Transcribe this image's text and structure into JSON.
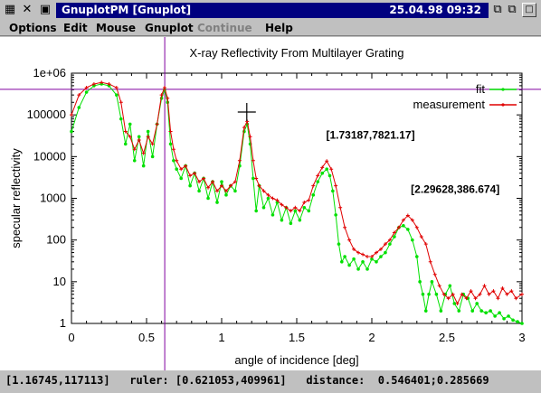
{
  "window": {
    "title": "GnuplotPM [Gnuplot]",
    "clock": "25.04.98 09:32"
  },
  "icons": {
    "system_menu": "gnuplot-app-icon",
    "close": "close-x-icon",
    "tile": "tile-windows-icon",
    "cascade": "cascade-windows-icon",
    "minimize": "minimize-icon",
    "maximize": "maximize-icon"
  },
  "menu": {
    "options": "Options",
    "edit": "Edit",
    "mouse": "Mouse",
    "gnuplot": "Gnuplot",
    "continue": "Continue",
    "help": "Help"
  },
  "chart_data": {
    "type": "line",
    "title": "X-ray Reflectivity From Multilayer Grating",
    "xlabel": "angle of incidence [deg]",
    "ylabel": "specular reflectivity",
    "xlim": [
      0,
      3
    ],
    "ylim": [
      1,
      1000000
    ],
    "yscale": "log",
    "xticks": [
      "0",
      "0.5",
      "1",
      "1.5",
      "2",
      "2.5",
      "3"
    ],
    "yticks": [
      "1",
      "10",
      "100",
      "1000",
      "10000",
      "100000",
      "1e+06"
    ],
    "legend_position": "top-right",
    "series": [
      {
        "name": "fit",
        "color": "#00e000",
        "x": [
          0.0,
          0.05,
          0.1,
          0.15,
          0.2,
          0.25,
          0.3,
          0.33,
          0.36,
          0.39,
          0.42,
          0.45,
          0.48,
          0.51,
          0.54,
          0.57,
          0.6,
          0.62,
          0.64,
          0.66,
          0.68,
          0.7,
          0.73,
          0.76,
          0.79,
          0.82,
          0.85,
          0.88,
          0.91,
          0.94,
          0.97,
          1.0,
          1.03,
          1.06,
          1.09,
          1.12,
          1.15,
          1.17,
          1.19,
          1.21,
          1.23,
          1.25,
          1.28,
          1.31,
          1.34,
          1.37,
          1.4,
          1.43,
          1.46,
          1.49,
          1.52,
          1.55,
          1.58,
          1.61,
          1.64,
          1.67,
          1.7,
          1.72,
          1.74,
          1.76,
          1.78,
          1.8,
          1.82,
          1.85,
          1.88,
          1.91,
          1.94,
          1.97,
          2.0,
          2.03,
          2.06,
          2.09,
          2.12,
          2.15,
          2.18,
          2.21,
          2.24,
          2.27,
          2.3,
          2.32,
          2.34,
          2.36,
          2.38,
          2.4,
          2.43,
          2.46,
          2.49,
          2.52,
          2.55,
          2.58,
          2.61,
          2.64,
          2.67,
          2.7,
          2.73,
          2.76,
          2.79,
          2.82,
          2.85,
          2.88,
          2.91,
          2.94,
          2.97,
          3.0
        ],
        "y": [
          40000,
          150000,
          350000,
          500000,
          550000,
          500000,
          300000,
          80000,
          20000,
          60000,
          8000,
          30000,
          6000,
          40000,
          10000,
          60000,
          250000,
          400000,
          200000,
          20000,
          8000,
          5000,
          3000,
          6000,
          2000,
          4000,
          1500,
          3000,
          1000,
          2500,
          800,
          2500,
          1200,
          2000,
          1500,
          6000,
          40000,
          60000,
          20000,
          3000,
          500,
          2000,
          600,
          1000,
          400,
          800,
          300,
          600,
          250,
          500,
          300,
          600,
          500,
          1200,
          2500,
          4000,
          5000,
          3500,
          1500,
          400,
          80,
          30,
          40,
          25,
          35,
          20,
          30,
          20,
          35,
          30,
          40,
          50,
          80,
          120,
          200,
          220,
          180,
          100,
          40,
          10,
          5,
          2,
          5,
          10,
          5,
          2,
          5,
          8,
          3,
          2,
          5,
          4,
          2,
          3,
          2,
          1.8,
          2,
          1.5,
          1.8,
          1.3,
          1.5,
          1.2,
          1.1,
          1.0
        ]
      },
      {
        "name": "measurement",
        "color": "#e00000",
        "x": [
          0.0,
          0.05,
          0.1,
          0.15,
          0.2,
          0.25,
          0.3,
          0.33,
          0.36,
          0.39,
          0.42,
          0.45,
          0.48,
          0.51,
          0.54,
          0.57,
          0.6,
          0.62,
          0.64,
          0.66,
          0.68,
          0.7,
          0.73,
          0.76,
          0.79,
          0.82,
          0.85,
          0.88,
          0.91,
          0.94,
          0.97,
          1.0,
          1.03,
          1.06,
          1.09,
          1.12,
          1.15,
          1.17,
          1.19,
          1.21,
          1.23,
          1.25,
          1.28,
          1.31,
          1.34,
          1.37,
          1.4,
          1.43,
          1.46,
          1.49,
          1.52,
          1.55,
          1.58,
          1.61,
          1.64,
          1.67,
          1.7,
          1.73,
          1.76,
          1.79,
          1.82,
          1.85,
          1.88,
          1.91,
          1.94,
          1.97,
          2.0,
          2.03,
          2.06,
          2.09,
          2.12,
          2.15,
          2.18,
          2.21,
          2.24,
          2.27,
          2.3,
          2.33,
          2.36,
          2.39,
          2.42,
          2.45,
          2.48,
          2.51,
          2.54,
          2.57,
          2.6,
          2.63,
          2.66,
          2.69,
          2.72,
          2.75,
          2.78,
          2.81,
          2.84,
          2.87,
          2.9,
          2.93,
          2.96,
          3.0
        ],
        "y": [
          100000,
          300000,
          450000,
          550000,
          600000,
          550000,
          450000,
          200000,
          40000,
          30000,
          15000,
          25000,
          12000,
          30000,
          20000,
          60000,
          300000,
          450000,
          250000,
          40000,
          15000,
          8000,
          5000,
          6000,
          3500,
          4000,
          2500,
          3000,
          1800,
          2500,
          1500,
          2000,
          1500,
          2000,
          2500,
          8000,
          50000,
          70000,
          30000,
          8000,
          3000,
          2000,
          1500,
          1200,
          1000,
          900,
          700,
          600,
          500,
          600,
          500,
          800,
          900,
          2000,
          3500,
          5500,
          7821.17,
          5000,
          2000,
          600,
          200,
          100,
          60,
          50,
          45,
          40,
          40,
          50,
          60,
          80,
          100,
          150,
          200,
          300,
          386.674,
          300,
          200,
          120,
          80,
          30,
          15,
          8,
          5,
          4,
          5,
          3,
          5,
          4,
          6,
          4,
          5,
          8,
          5,
          6,
          4,
          7,
          5,
          6,
          4,
          5
        ]
      }
    ],
    "annotations": [
      {
        "text": "[1.73187,7821.17]",
        "x": 1.73187,
        "y": 7821.17
      },
      {
        "text": "[2.29628,386.674]",
        "x": 2.29628,
        "y": 386.674
      }
    ],
    "ruler": {
      "x": 0.621053,
      "y": 409961
    },
    "mouse_crosshair": {
      "x": 1.16745,
      "y": 117113
    }
  },
  "status": {
    "text": "[1.16745,117113]   ruler: [0.621053,409961]   distance:  0.546401;0.285669"
  }
}
